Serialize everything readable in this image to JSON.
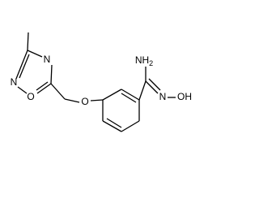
{
  "atoms": {
    "ring_n_top": "N",
    "ring_n_left": "N",
    "ring_o": "O",
    "ether_o": "O",
    "amine": {
      "main": "NH",
      "sub": "2"
    },
    "oxime_n": "N",
    "hydroxyl": "OH"
  }
}
